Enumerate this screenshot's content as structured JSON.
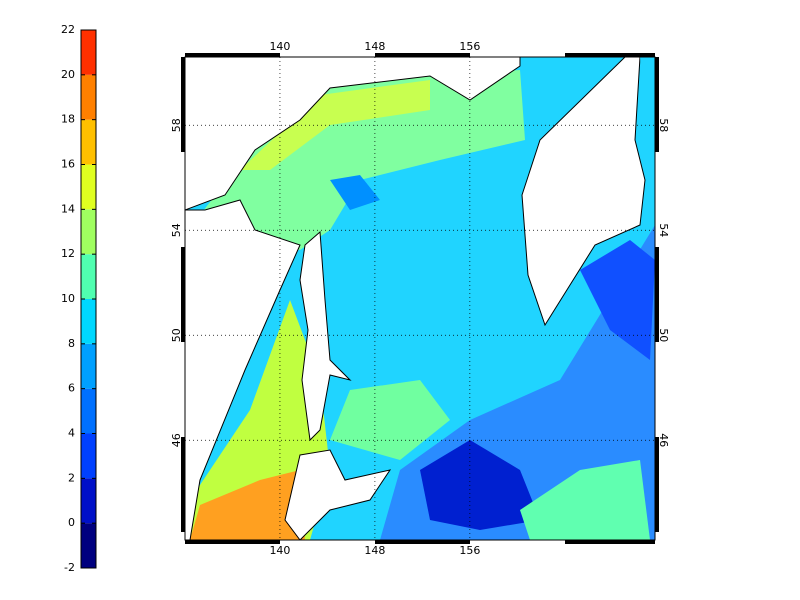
{
  "colorbar": {
    "lim": [
      -2,
      22
    ],
    "ticks": [
      -2,
      0,
      2,
      4,
      6,
      8,
      10,
      12,
      14,
      16,
      18,
      20,
      22
    ],
    "colors": [
      "#00007f",
      "#0010c8",
      "#0040ff",
      "#0070ff",
      "#00a0ff",
      "#00d8ff",
      "#50ffb0",
      "#a0ff60",
      "#e0ff20",
      "#ffc000",
      "#ff8000",
      "#ff3000"
    ]
  },
  "map": {
    "lon_lim": [
      132,
      171.6
    ],
    "lat_lim": [
      42.2,
      60.6
    ],
    "lon_ticks": [
      140,
      148,
      156
    ],
    "lat_ticks": [
      46,
      50,
      54,
      58
    ],
    "grid": true
  }
}
